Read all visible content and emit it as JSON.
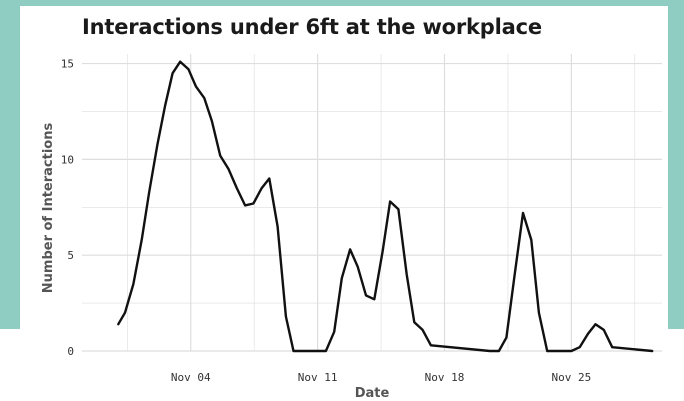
{
  "title": "Interactions under 6ft at the workplace",
  "colors": {
    "background_band": "#8fcdc2",
    "panel": "#ffffff",
    "line": "#111111",
    "grid": "#dedede"
  },
  "chart_data": {
    "type": "line",
    "title": "Interactions under 6ft at the workplace",
    "xlabel": "Date",
    "ylabel": "Number of Interactions",
    "x_ticks": [
      "Nov 04",
      "Nov 11",
      "Nov 18",
      "Nov 25"
    ],
    "y_ticks": [
      "0",
      "5",
      "10",
      "15"
    ],
    "xlim": [
      "2020-10-29",
      "2020-11-30"
    ],
    "ylim": [
      0,
      15.5
    ],
    "grid": true,
    "legend": "none",
    "series": [
      {
        "x": [
          "2020-10-31",
          "2020-10-31T09:00",
          "2020-10-31T20:00",
          "2020-11-01T07:00",
          "2020-11-01T17:00",
          "2020-11-02T04:00",
          "2020-11-02T14:00",
          "2020-11-03T00:00",
          "2020-11-03T10:00",
          "2020-11-03T21:00",
          "2020-11-04T07:00",
          "2020-11-04T18:00",
          "2020-11-05T04:00",
          "2020-11-05T15:00",
          "2020-11-06T02:00",
          "2020-11-06T13:00",
          "2020-11-07T00:00",
          "2020-11-07T11:00",
          "2020-11-07T22:00",
          "2020-11-08T08:00",
          "2020-11-08T19:00",
          "2020-11-09T06:00",
          "2020-11-09T16:00",
          "2020-11-10T03:00",
          "2020-11-10T13:00",
          "2020-11-11T00:00",
          "2020-11-11T11:00",
          "2020-11-11T22:00",
          "2020-11-12T08:00",
          "2020-11-12T19:00",
          "2020-11-13T05:00",
          "2020-11-13T16:00",
          "2020-11-14T03:00",
          "2020-11-14T14:00",
          "2020-11-15T00:00",
          "2020-11-15T11:00",
          "2020-11-15T22:00",
          "2020-11-16T08:00",
          "2020-11-16T19:00",
          "2020-11-17T06:00",
          "2020-11-20T12:00",
          "2020-11-21T00:00",
          "2020-11-21T10:00",
          "2020-11-21T21:00",
          "2020-11-22T08:00",
          "2020-11-22T19:00",
          "2020-11-23T05:00",
          "2020-11-23T16:00",
          "2020-11-24T03:00",
          "2020-11-24T14:00",
          "2020-11-25T00:00",
          "2020-11-25T11:00",
          "2020-11-25T22:00",
          "2020-11-26T08:00",
          "2020-11-26T19:00",
          "2020-11-27T06:00",
          "2020-11-29T11:00"
        ],
        "y": [
          1.4,
          2.0,
          3.5,
          5.8,
          8.3,
          10.8,
          12.8,
          14.5,
          15.1,
          14.7,
          13.8,
          13.2,
          12.0,
          10.2,
          9.5,
          8.5,
          7.6,
          7.7,
          8.5,
          9.0,
          6.5,
          1.8,
          0.0,
          0.0,
          0.0,
          0.0,
          0.0,
          1.0,
          3.8,
          5.3,
          4.4,
          2.9,
          2.7,
          5.2,
          7.8,
          7.4,
          4.0,
          1.5,
          1.1,
          0.3,
          0.0,
          0.0,
          0.7,
          4.0,
          7.2,
          5.8,
          2.0,
          0.0,
          0.0,
          0.0,
          0.0,
          0.2,
          0.9,
          1.4,
          1.1,
          0.2,
          0.0
        ]
      }
    ]
  }
}
